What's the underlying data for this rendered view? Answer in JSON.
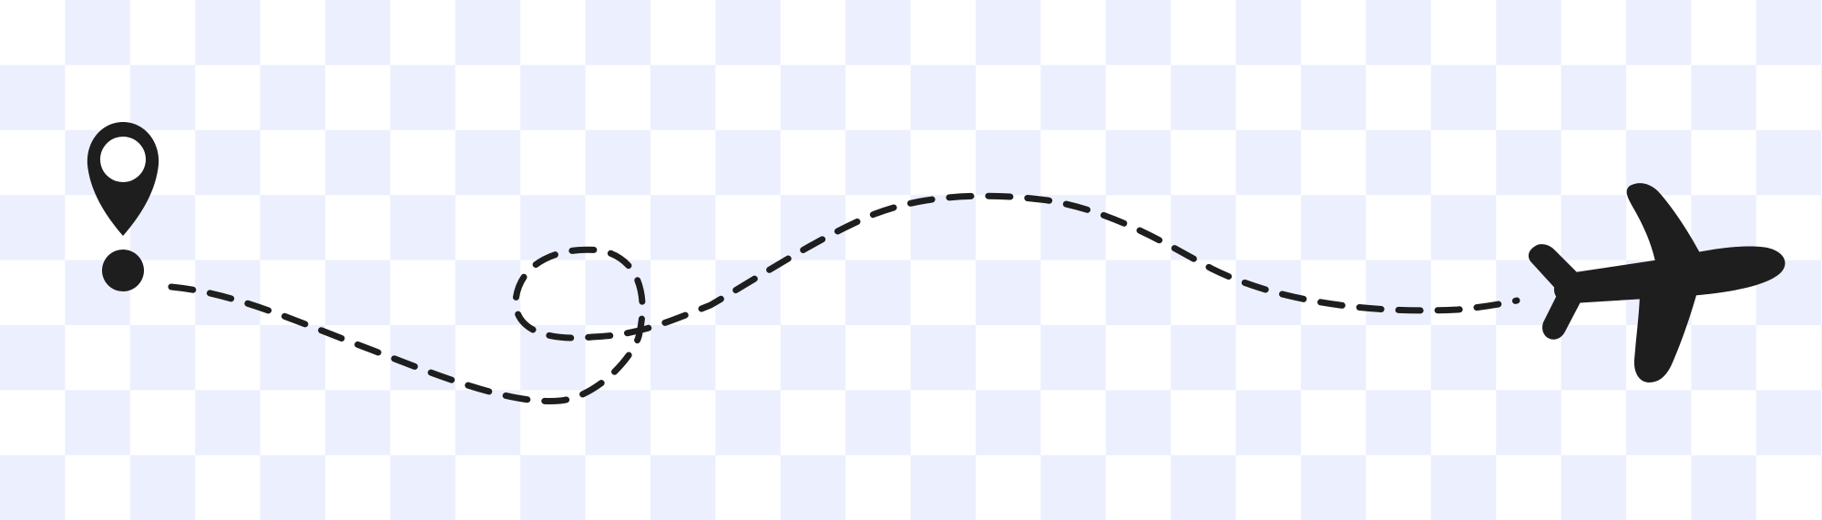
{
  "colors": {
    "checker_light": "#ffffff",
    "checker_tint": "#eceffd",
    "ink": "#1e1e1e"
  },
  "icons": {
    "start": "map-pin-icon",
    "end": "airplane-icon"
  }
}
